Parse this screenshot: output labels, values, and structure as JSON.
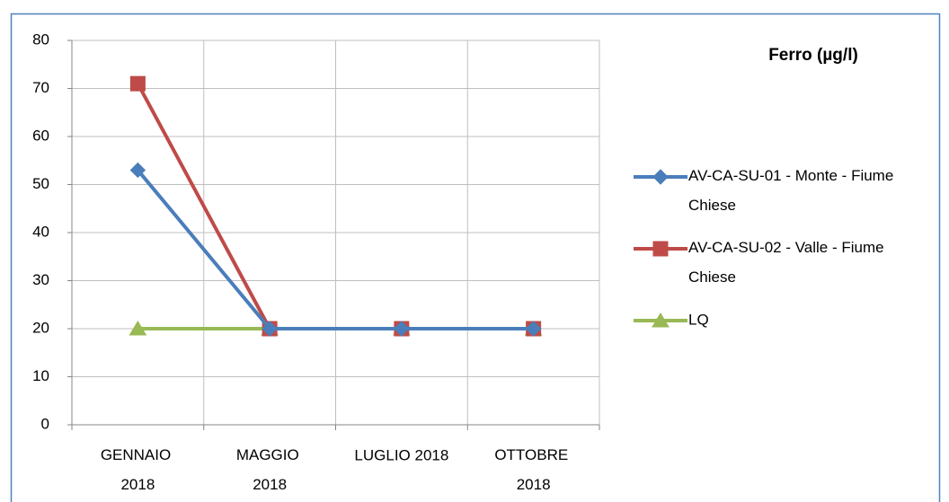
{
  "chart_data": {
    "type": "line",
    "title": "Ferro (µg/l)",
    "categories": [
      "GENNAIO 2018",
      "MAGGIO 2018",
      "LUGLIO 2018",
      "OTTOBRE 2018"
    ],
    "series": [
      {
        "name": "AV-CA-SU-01 - Monte - Fiume Chiese",
        "color": "#4a7ebb",
        "marker": "diamond",
        "values": [
          53,
          20,
          20,
          20
        ]
      },
      {
        "name": "AV-CA-SU-02 - Valle - Fiume Chiese",
        "color": "#be4b48",
        "marker": "square",
        "values": [
          71,
          20,
          20,
          20
        ]
      },
      {
        "name": "LQ",
        "color": "#98b954",
        "marker": "triangle",
        "values": [
          20,
          20,
          20,
          20
        ]
      }
    ],
    "ylim": [
      0,
      80
    ],
    "yticks": [
      0,
      10,
      20,
      30,
      40,
      50,
      60,
      70,
      80
    ],
    "grid": true,
    "legend": "right"
  }
}
